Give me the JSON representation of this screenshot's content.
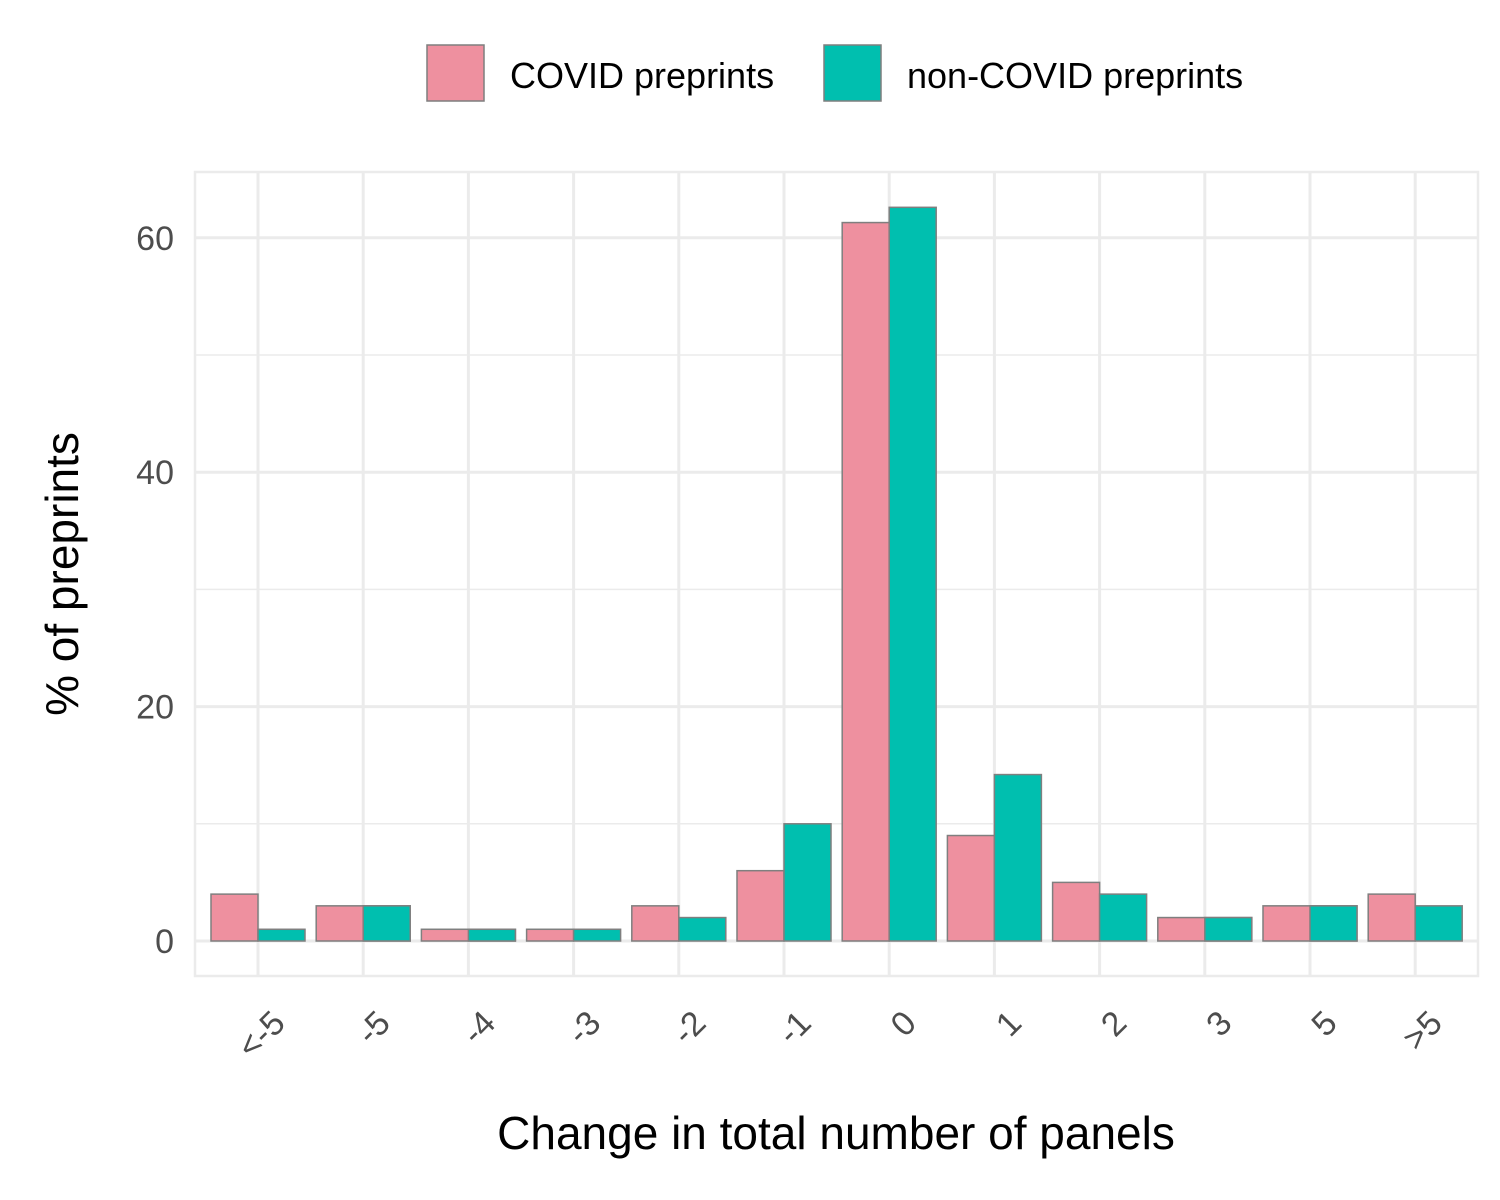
{
  "chart_data": {
    "type": "bar",
    "xlabel": "Change in total number of panels",
    "ylabel": "% of preprints",
    "categories": [
      "<-5",
      "-5",
      "-4",
      "-3",
      "-2",
      "-1",
      "0",
      "1",
      "2",
      "3",
      "5",
      ">5"
    ],
    "series": [
      {
        "name": "COVID preprints",
        "color": "#ee909f",
        "values": [
          4,
          3,
          1,
          1,
          3,
          6,
          61.3,
          9,
          5,
          2,
          3,
          4
        ]
      },
      {
        "name": "non-COVID preprints",
        "color": "#00bfaf",
        "values": [
          1,
          3,
          1,
          1,
          2,
          10,
          62.6,
          14.2,
          4,
          2,
          3,
          3
        ]
      }
    ],
    "combined": [
      false,
      true,
      true,
      false,
      false,
      false,
      false,
      false,
      false,
      true,
      true,
      false
    ],
    "yticks": [
      0,
      20,
      40,
      60
    ],
    "ylim": [
      -3,
      65.7
    ],
    "grid": true,
    "legend_position": "top"
  }
}
